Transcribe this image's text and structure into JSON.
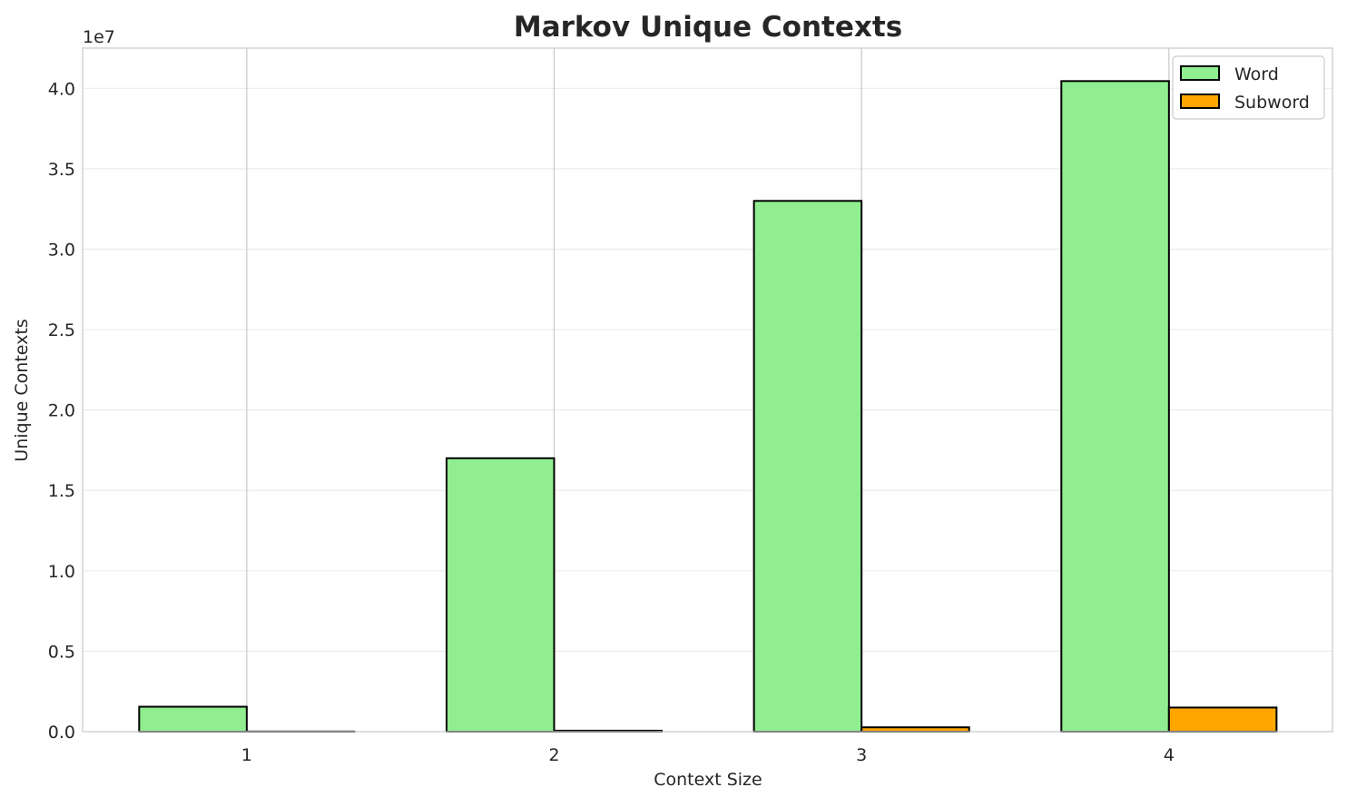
{
  "chart_data": {
    "type": "bar",
    "title": "Markov Unique Contexts",
    "xlabel": "Context Size",
    "ylabel": "Unique Contexts",
    "y_offset_label": "1e7",
    "categories": [
      "1",
      "2",
      "3",
      "4"
    ],
    "series": [
      {
        "name": "Word",
        "color": "#90ee90",
        "values": [
          1550000,
          17000000,
          33000000,
          40450000
        ]
      },
      {
        "name": "Subword",
        "color": "#ffa500",
        "values": [
          10000,
          60000,
          270000,
          1500000
        ]
      }
    ],
    "ylim": [
      0,
      42500000
    ],
    "yticks": [
      "0.0",
      "0.5",
      "1.0",
      "1.5",
      "2.0",
      "2.5",
      "3.0",
      "3.5",
      "4.0"
    ],
    "grid": true,
    "legend": "top-right"
  }
}
